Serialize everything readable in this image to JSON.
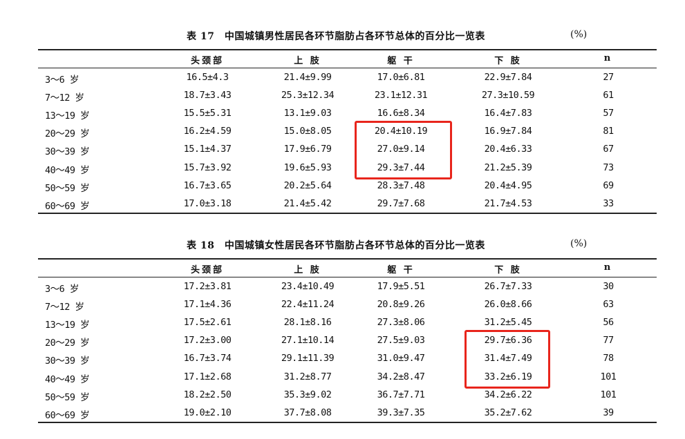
{
  "highlight_color": "#e8251c",
  "tables": [
    {
      "title": "表 17　中国城镇男性居民各环节脂肪占各环节总体的百分比一览表",
      "unit": "(%)",
      "headers": [
        "",
        "头颈部",
        "上 肢",
        "躯 干",
        "下 肢",
        "n"
      ],
      "rows": [
        [
          "3～6 岁",
          "16.5±4.3",
          "21.4±9.99",
          "17.0±6.81",
          "22.9±7.84",
          "27"
        ],
        [
          "7～12 岁",
          "18.7±3.43",
          "25.3±12.34",
          "23.1±12.31",
          "27.3±10.59",
          "61"
        ],
        [
          "13～19 岁",
          "15.5±5.31",
          "13.1±9.03",
          "16.6±8.34",
          "16.4±7.83",
          "57"
        ],
        [
          "20～29 岁",
          "16.2±4.59",
          "15.0±8.05",
          "20.4±10.19",
          "16.9±7.84",
          "81"
        ],
        [
          "30～39 岁",
          "15.1±4.37",
          "17.9±6.79",
          "27.0±9.14",
          "20.4±6.33",
          "67"
        ],
        [
          "40～49 岁",
          "15.7±3.92",
          "19.6±5.93",
          "29.3±7.44",
          "21.2±5.39",
          "73"
        ],
        [
          "50～59 岁",
          "16.7±3.65",
          "20.2±5.64",
          "28.3±7.48",
          "20.4±4.95",
          "69"
        ],
        [
          "60～69 岁",
          "17.0±3.18",
          "21.4±5.42",
          "29.7±7.68",
          "21.7±4.53",
          "33"
        ]
      ],
      "highlight": {
        "column": "躯 干",
        "rows": [
          "20～29 岁",
          "30～39 岁",
          "40～49 岁"
        ]
      }
    },
    {
      "title": "表 18　中国城镇女性居民各环节脂肪占各环节总体的百分比一览表",
      "unit": "(%)",
      "headers": [
        "",
        "头颈部",
        "上 肢",
        "躯 干",
        "下 肢",
        "n"
      ],
      "rows": [
        [
          "3～6 岁",
          "17.2±3.81",
          "23.4±10.49",
          "17.9±5.51",
          "26.7±7.33",
          "30"
        ],
        [
          "7～12 岁",
          "17.1±4.36",
          "22.4±11.24",
          "20.8±9.26",
          "26.0±8.66",
          "63"
        ],
        [
          "13～19 岁",
          "17.5±2.61",
          "28.1±8.16",
          "27.3±8.06",
          "31.2±5.45",
          "56"
        ],
        [
          "20～29 岁",
          "17.2±3.00",
          "27.1±10.14",
          "27.5±9.03",
          "29.7±6.36",
          "77"
        ],
        [
          "30～39 岁",
          "16.7±3.74",
          "29.1±11.39",
          "31.0±9.47",
          "31.4±7.49",
          "78"
        ],
        [
          "40～49 岁",
          "17.1±2.68",
          "31.2±8.77",
          "34.2±8.47",
          "33.2±6.19",
          "101"
        ],
        [
          "50～59 岁",
          "18.2±2.50",
          "35.3±9.02",
          "36.7±7.71",
          "34.2±6.22",
          "101"
        ],
        [
          "60～69 岁",
          "19.0±2.10",
          "37.7±8.08",
          "39.3±7.35",
          "35.2±7.62",
          "39"
        ]
      ],
      "highlight": {
        "column": "下 肢",
        "rows": [
          "20～29 岁",
          "30～39 岁",
          "40～49 岁"
        ]
      }
    }
  ]
}
